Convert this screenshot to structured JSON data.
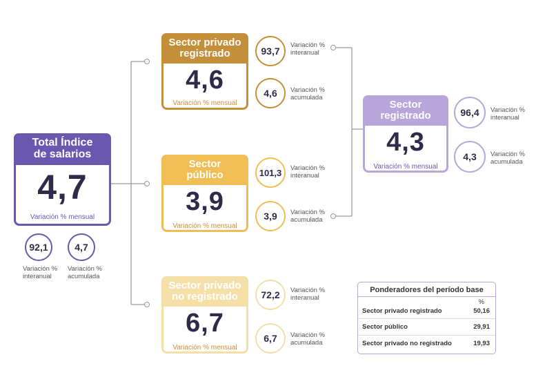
{
  "colors": {
    "total": "#6a57b0",
    "privado": "#c38f3a",
    "publico": "#f0be55",
    "no_registrado": "#f3dfa7",
    "registrado": "#b8a5d9",
    "line": "#9a9a9a"
  },
  "total": {
    "title_line1": "Total Índice",
    "title_line2": "de salarios",
    "value": "4,7",
    "sub": "Variación % mensual",
    "interanual": "92,1",
    "acumulada": "4,7",
    "interanual_label_1": "Variación %",
    "interanual_label_2": "interanual",
    "acumulada_label_1": "Variación %",
    "acumulada_label_2": "acumulada"
  },
  "privado": {
    "title_line1": "Sector privado",
    "title_line2": "registrado",
    "value": "4,6",
    "sub": "Variación % mensual",
    "interanual": "93,7",
    "acumulada": "4,6"
  },
  "publico": {
    "title_line1": "Sector",
    "title_line2": "público",
    "value": "3,9",
    "sub": "Variación % mensual",
    "interanual": "101,3",
    "acumulada": "3,9"
  },
  "no_registrado": {
    "title_line1": "Sector privado",
    "title_line2": "no registrado",
    "value": "6,7",
    "sub": "Variación % mensual",
    "interanual": "72,2",
    "acumulada": "6,7"
  },
  "registrado": {
    "title_line1": "Sector",
    "title_line2": "registrado",
    "value": "4,3",
    "sub": "Variación % mensual",
    "interanual": "96,4",
    "acumulada": "4,3"
  },
  "labels": {
    "interanual_1": "Variación %",
    "interanual_2": "interanual",
    "acumulada_1": "Variación %",
    "acumulada_2": "acumulada"
  },
  "ponderadores": {
    "title": "Ponderadores del período base",
    "unit": "%",
    "rows": [
      {
        "name": "Sector privado registrado",
        "value": "50,16"
      },
      {
        "name": "Sector público",
        "value": "29,91"
      },
      {
        "name": "Sector privado no registrado",
        "value": "19,93"
      }
    ]
  }
}
